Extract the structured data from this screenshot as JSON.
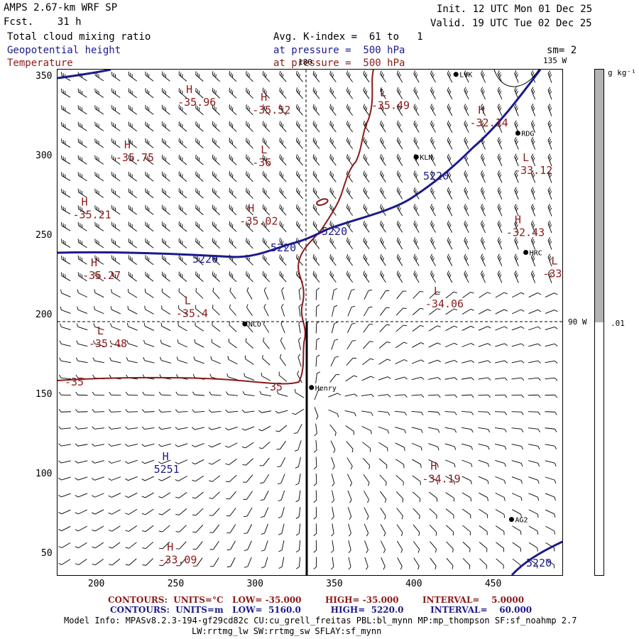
{
  "header": {
    "model": "AMPS 2.67-km WRF SP",
    "fcst": "Fcst.    31 h",
    "init": "Init. 12 UTC Mon 01 Dec 25",
    "valid": "Valid. 19 UTC Tue 02 Dec 25",
    "field1": "Total cloud mixing ratio",
    "field2": "Geopotential height",
    "field3": "Temperature",
    "avg": "Avg. K-index =  61 to   1",
    "pressure_blue": "at pressure =  500 hPa",
    "pressure_red": "at pressure =  500 hPa",
    "sm": "sm= 2"
  },
  "map": {
    "lon_180": "180",
    "lon_135": "135 W",
    "lon_90": "90 W",
    "x_ticks": [
      "200",
      "250",
      "300",
      "350",
      "400",
      "450"
    ],
    "y_ticks": [
      "350",
      "300",
      "250",
      "200",
      "150",
      "100",
      "50"
    ],
    "stations": [
      {
        "name": "LVK",
        "x": 426,
        "y": 352
      },
      {
        "name": "RDG",
        "x": 465,
        "y": 315
      },
      {
        "name": "KLN",
        "x": 401,
        "y": 300
      },
      {
        "name": "HRC",
        "x": 470,
        "y": 240
      },
      {
        "name": "NCO",
        "x": 293,
        "y": 195
      },
      {
        "name": "Henry",
        "x": 335,
        "y": 155
      },
      {
        "name": "AG2",
        "x": 461,
        "y": 72
      }
    ],
    "temp_labels": [
      {
        "type": "H",
        "value": "-35.96",
        "x": 256,
        "y": 335
      },
      {
        "type": "H",
        "value": "-35.52",
        "x": 303,
        "y": 330
      },
      {
        "type": "L",
        "value": "-35.49",
        "x": 378,
        "y": 333
      },
      {
        "type": "H",
        "value": "-32.14",
        "x": 440,
        "y": 322
      },
      {
        "type": "H",
        "value": "-35.75",
        "x": 217,
        "y": 300
      },
      {
        "type": "L",
        "value": "-36",
        "x": 303,
        "y": 297
      },
      {
        "type": "L",
        "value": "-33.12",
        "x": 468,
        "y": 292
      },
      {
        "type": "H",
        "value": "-35.21",
        "x": 190,
        "y": 264
      },
      {
        "type": "H",
        "value": "-35.02",
        "x": 295,
        "y": 260
      },
      {
        "type": "H",
        "value": "-32.43",
        "x": 463,
        "y": 253
      },
      {
        "type": "H",
        "value": "-35.27",
        "x": 196,
        "y": 226
      },
      {
        "type": "L",
        "value": "-33.",
        "x": 486,
        "y": 227
      },
      {
        "type": "L",
        "value": "-35.4",
        "x": 255,
        "y": 202
      },
      {
        "type": "L",
        "value": "-34.06",
        "x": 412,
        "y": 208
      },
      {
        "type": "L",
        "value": "-35.48",
        "x": 200,
        "y": 183
      },
      {
        "type": "H",
        "value": "-34.19",
        "x": 410,
        "y": 98
      },
      {
        "type": "H",
        "value": "-33.09",
        "x": 244,
        "y": 47
      }
    ],
    "height_labels": [
      {
        "type": "H",
        "value": "5251",
        "x": 241,
        "y": 104
      }
    ],
    "contour_labels_blue": [
      "5220",
      "5220",
      "5220",
      "5220",
      "5220"
    ],
    "contour_labels_red": [
      "-35",
      "-35"
    ]
  },
  "colorbar": {
    "units": "g kg⁻¹",
    "tick": ".01",
    "fill_fraction": 0.5
  },
  "footer": {
    "contours1": "CONTOURS:  UNITS=°C   LOW= -35.000        HIGH= -35.000        INTERVAL=    5.0000",
    "contours2": "CONTOURS:  UNITS=m   LOW=  5160.0          HIGH=  5220.0         INTERVAL=    60.000",
    "model_info": "Model Info: MPASv8.2.3-194-gf29cd82c CU:cu_grell_freitas PBL:bl_mynn MP:mp_thompson SF:sf_noahmp 2.7",
    "model_info2": "LW:rrtmg_lw SW:rrtmg_sw SFLAY:sf_mynn"
  },
  "colors": {
    "blue": "#1a1a8c",
    "red": "#8b1a1a",
    "gray": "#b3b3b3"
  }
}
